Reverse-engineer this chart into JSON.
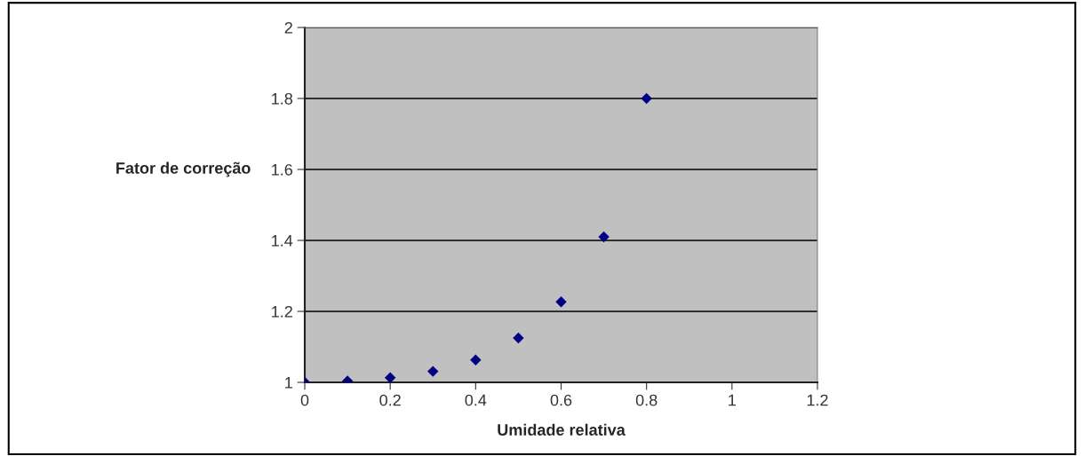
{
  "chart_data": {
    "type": "scatter",
    "xlabel": "Umidade relativa",
    "ylabel": "Fator de correção",
    "x": [
      0,
      0.1,
      0.2,
      0.3,
      0.4,
      0.5,
      0.6,
      0.7,
      0.8
    ],
    "series": [
      {
        "color": "#000080",
        "values": [
          1.0,
          1.004,
          1.013,
          1.031,
          1.063,
          1.125,
          1.227,
          1.41,
          1.8
        ]
      }
    ],
    "marker": "diamond",
    "grid": "y",
    "xlim": [
      0,
      1.2
    ],
    "xticks": [
      0,
      0.2,
      0.4,
      0.6,
      0.8,
      1,
      1.2
    ],
    "ylim": [
      1,
      2
    ],
    "yticks": [
      1,
      1.2,
      1.4,
      1.6,
      1.8,
      2
    ]
  }
}
